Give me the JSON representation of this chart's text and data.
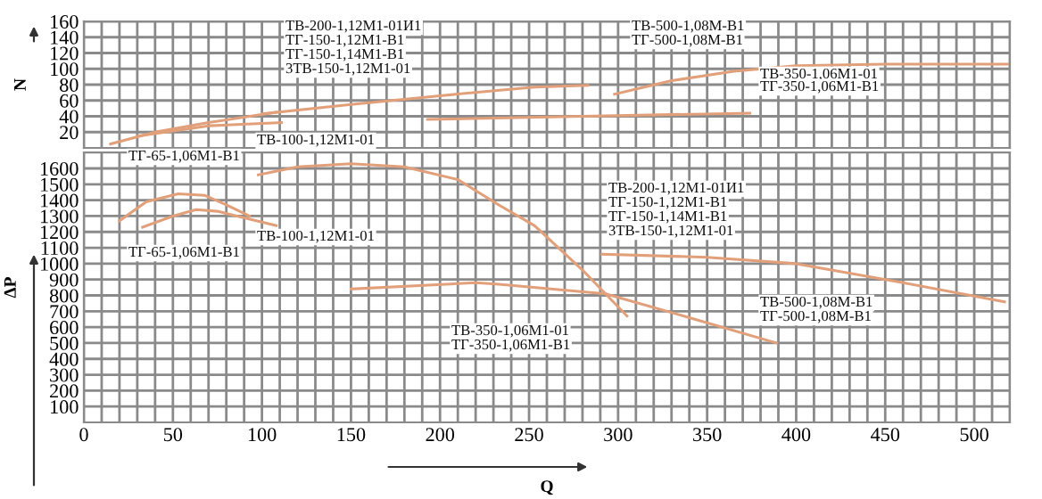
{
  "chart_data": [
    {
      "type": "line",
      "ylabel": "N",
      "xlim": [
        0,
        520
      ],
      "ylim": [
        0,
        160
      ],
      "xticks": [
        0,
        {
          "value": 10,
          "label": null
        },
        {
          "value": 20,
          "label": null
        },
        {
          "value": 30,
          "label": null
        },
        {
          "value": 40,
          "label": null
        },
        50,
        {
          "value": 60,
          "label": null
        },
        {
          "value": 70,
          "label": null
        },
        {
          "value": 80,
          "label": null
        },
        {
          "value": 90,
          "label": null
        },
        100,
        {
          "value": 110,
          "label": null
        },
        {
          "value": 120,
          "label": null
        },
        {
          "value": 130,
          "label": null
        },
        {
          "value": 140,
          "label": null
        },
        150,
        {
          "value": 160,
          "label": null
        },
        {
          "value": 170,
          "label": null
        },
        {
          "value": 180,
          "label": null
        },
        {
          "value": 190,
          "label": null
        },
        200,
        {
          "value": 210,
          "label": null
        },
        {
          "value": 220,
          "label": null
        },
        {
          "value": 230,
          "label": null
        },
        {
          "value": 240,
          "label": null
        },
        250,
        {
          "value": 260,
          "label": null
        },
        {
          "value": 270,
          "label": null
        },
        {
          "value": 280,
          "label": null
        },
        {
          "value": 290,
          "label": null
        },
        300,
        {
          "value": 310,
          "label": null
        },
        {
          "value": 320,
          "label": null
        },
        {
          "value": 330,
          "label": null
        },
        {
          "value": 340,
          "label": null
        },
        350,
        {
          "value": 360,
          "label": null
        },
        {
          "value": 370,
          "label": null
        },
        {
          "value": 380,
          "label": null
        },
        {
          "value": 390,
          "label": null
        },
        400,
        {
          "value": 410,
          "label": null
        },
        {
          "value": 420,
          "label": null
        },
        {
          "value": 430,
          "label": null
        },
        {
          "value": 440,
          "label": null
        },
        450,
        {
          "value": 460,
          "label": null
        },
        {
          "value": 470,
          "label": null
        },
        {
          "value": 480,
          "label": null
        },
        {
          "value": 490,
          "label": null
        },
        500,
        {
          "value": 510,
          "label": null
        },
        {
          "value": 520,
          "label": null
        }
      ],
      "yticks": [
        20,
        40,
        60,
        80,
        100,
        120,
        140,
        160
      ],
      "tick_labels": "y",
      "grid": true,
      "series": [
        {
          "color": "#e2a07a",
          "x": [
            15,
            40,
            70,
            108
          ],
          "values": [
            5,
            20,
            32,
            45
          ]
        },
        {
          "color": "#e2a07a",
          "x": [
            30,
            70,
            111
          ],
          "values": [
            15,
            28,
            32
          ]
        },
        {
          "color": "#e2a07a",
          "x": [
            100,
            150,
            200,
            253,
            283
          ],
          "values": [
            43,
            55,
            66,
            77,
            79
          ]
        },
        {
          "color": "#e2a07a",
          "x": [
            193,
            280,
            374
          ],
          "values": [
            36,
            40,
            44
          ]
        },
        {
          "color": "#e2a07a",
          "x": [
            298,
            330,
            365,
            400,
            450,
            520
          ],
          "values": [
            68,
            85,
            97,
            104,
            106,
            106
          ]
        }
      ],
      "annotations": [
        "ТВ-200-1,12М1-01И1",
        "ТГ-150-1,12М1-В1",
        "ТГ-150-1,14М1-В1",
        "3ТВ-150-1,12М1-01",
        "ТВ-100-1,12М1-01",
        "ТВ-500-1,08М-В1",
        "ТГ-500-1,08М-В1",
        "ТВ-350-1,06М1-01",
        "ТГ-350-1,06М1-В1"
      ]
    },
    {
      "type": "line",
      "ylabel": "ΔP",
      "xlabel": "Q",
      "xlim": [
        0,
        520
      ],
      "ylim": [
        0,
        1700
      ],
      "xticks": [
        0,
        {
          "value": 10,
          "label": null
        },
        {
          "value": 20,
          "label": null
        },
        {
          "value": 30,
          "label": null
        },
        {
          "value": 40,
          "label": null
        },
        50,
        {
          "value": 60,
          "label": null
        },
        {
          "value": 70,
          "label": null
        },
        {
          "value": 80,
          "label": null
        },
        {
          "value": 90,
          "label": null
        },
        100,
        {
          "value": 110,
          "label": null
        },
        {
          "value": 120,
          "label": null
        },
        {
          "value": 130,
          "label": null
        },
        {
          "value": 140,
          "label": null
        },
        150,
        {
          "value": 160,
          "label": null
        },
        {
          "value": 170,
          "label": null
        },
        {
          "value": 180,
          "label": null
        },
        {
          "value": 190,
          "label": null
        },
        200,
        {
          "value": 210,
          "label": null
        },
        {
          "value": 220,
          "label": null
        },
        {
          "value": 230,
          "label": null
        },
        {
          "value": 240,
          "label": null
        },
        250,
        {
          "value": 260,
          "label": null
        },
        {
          "value": 270,
          "label": null
        },
        {
          "value": 280,
          "label": null
        },
        {
          "value": 290,
          "label": null
        },
        300,
        {
          "value": 310,
          "label": null
        },
        {
          "value": 320,
          "label": null
        },
        {
          "value": 330,
          "label": null
        },
        {
          "value": 340,
          "label": null
        },
        350,
        {
          "value": 360,
          "label": null
        },
        {
          "value": 370,
          "label": null
        },
        {
          "value": 380,
          "label": null
        },
        {
          "value": 390,
          "label": null
        },
        400,
        {
          "value": 410,
          "label": null
        },
        {
          "value": 420,
          "label": null
        },
        {
          "value": 430,
          "label": null
        },
        {
          "value": 440,
          "label": null
        },
        450,
        {
          "value": 460,
          "label": null
        },
        {
          "value": 470,
          "label": null
        },
        {
          "value": 480,
          "label": null
        },
        {
          "value": 490,
          "label": null
        },
        500,
        {
          "value": 510,
          "label": null
        },
        {
          "value": 520,
          "label": null
        }
      ],
      "yticks": [
        100,
        200,
        300,
        400,
        500,
        600,
        700,
        800,
        900,
        1000,
        1100,
        1200,
        1300,
        1400,
        1500,
        1600
      ],
      "grid": true,
      "series": [
        {
          "color": "#e2a07a",
          "x": [
            20,
            35,
            53,
            68,
            80,
            93
          ],
          "values": [
            1270,
            1390,
            1440,
            1430,
            1370,
            1300
          ]
        },
        {
          "color": "#e2a07a",
          "x": [
            33,
            50,
            63,
            75,
            86,
            108
          ],
          "values": [
            1230,
            1300,
            1340,
            1330,
            1300,
            1240
          ]
        },
        {
          "color": "#e2a07a",
          "x": [
            98,
            120,
            150,
            180,
            210,
            233,
            253,
            280,
            305
          ],
          "values": [
            1560,
            1610,
            1630,
            1610,
            1530,
            1370,
            1240,
            960,
            670
          ]
        },
        {
          "color": "#e2a07a",
          "x": [
            150,
            220,
            233,
            293,
            340,
            389
          ],
          "values": [
            840,
            880,
            870,
            810,
            660,
            500
          ]
        },
        {
          "color": "#e2a07a",
          "x": [
            291,
            350,
            400,
            460,
            517
          ],
          "values": [
            1060,
            1040,
            1000,
            880,
            760
          ]
        }
      ],
      "annotations": [
        "ТГ-65-1,06М1-В1",
        "ТВ-100-1,12М1-01",
        "ТГ-65-1,06М1-В1",
        "ТВ-200-1,12М1-01И1",
        "ТГ-150-1,12М1-В1",
        "ТГ-150-1,14М1-В1",
        "3ТВ-150-1,12М1-01",
        "ТВ-500-1,08М-В1",
        "ТГ-500-1,08М-В1",
        "ТВ-350-1,06М1-01",
        "ТГ-350-1,06М1-В1"
      ]
    }
  ]
}
